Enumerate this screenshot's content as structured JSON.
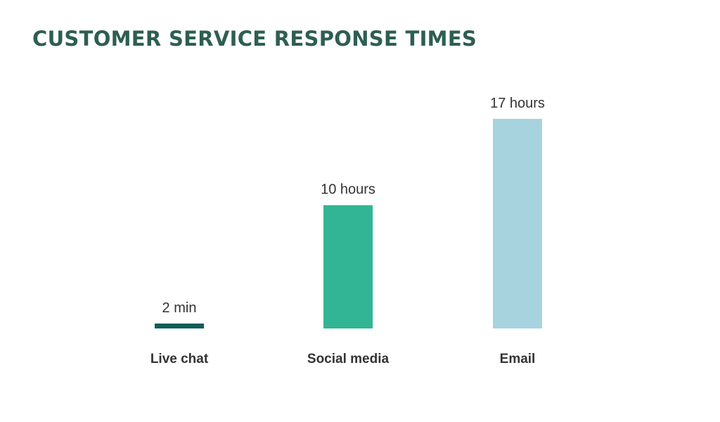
{
  "chart_data": {
    "type": "bar",
    "title": "CUSTOMER SERVICE RESPONSE TIMES",
    "categories": [
      "Live chat",
      "Social media",
      "Email"
    ],
    "values": [
      0.0333,
      10,
      17
    ],
    "value_unit": "hours",
    "data_labels": [
      "2 min",
      "10 hours",
      "17 hours"
    ],
    "bar_colors": [
      "#0e5e57",
      "#32b594",
      "#a6d3de"
    ],
    "xlabel": "",
    "ylabel": "",
    "ylim": [
      0,
      17
    ],
    "grid": false,
    "legend": "none"
  },
  "colors": {
    "title": "#2e5e52",
    "text": "#333333"
  }
}
